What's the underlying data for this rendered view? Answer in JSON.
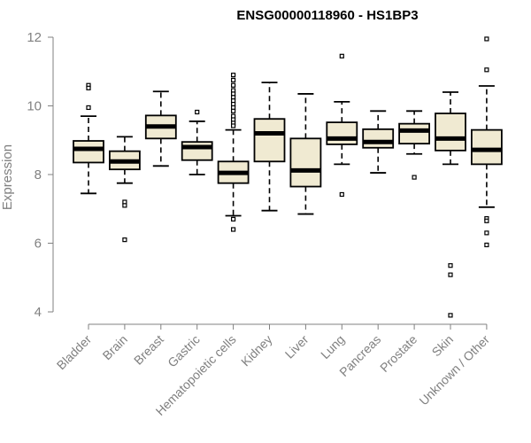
{
  "chart_data": {
    "type": "boxplot",
    "title": "ENSG00000118960 - HS1BP3",
    "xlabel": "",
    "ylabel": "Expression",
    "ylim": [
      3.7,
      12.2
    ],
    "yticks": [
      4,
      6,
      8,
      10,
      12
    ],
    "box_fill": "#f0ead2",
    "stroke_color": "#000000",
    "axis_color": "#808080",
    "categories": [
      "Bladder",
      "Brain",
      "Breast",
      "Gastric",
      "Hematopoietic cells",
      "Kidney",
      "Liver",
      "Lung",
      "Pancreas",
      "Prostate",
      "Skin",
      "Unknown / Other"
    ],
    "boxes": [
      {
        "name": "Bladder",
        "whislo": 7.45,
        "q1": 8.35,
        "med": 8.75,
        "q3": 8.98,
        "whishi": 9.7,
        "fliers": [
          10.6,
          10.52,
          9.95
        ]
      },
      {
        "name": "Brain",
        "whislo": 7.75,
        "q1": 8.15,
        "med": 8.38,
        "q3": 8.68,
        "whishi": 9.1,
        "fliers": [
          7.2,
          7.1,
          6.1
        ]
      },
      {
        "name": "Breast",
        "whislo": 8.25,
        "q1": 9.05,
        "med": 9.4,
        "q3": 9.72,
        "whishi": 10.42,
        "fliers": []
      },
      {
        "name": "Gastric",
        "whislo": 8.0,
        "q1": 8.42,
        "med": 8.8,
        "q3": 8.95,
        "whishi": 9.55,
        "fliers": [
          9.82
        ]
      },
      {
        "name": "Hematopoietic cells",
        "whislo": 6.8,
        "q1": 7.75,
        "med": 8.05,
        "q3": 8.38,
        "whishi": 9.3,
        "fliers": [
          10.9,
          10.75,
          10.6,
          10.45,
          10.35,
          10.25,
          10.15,
          10.05,
          9.95,
          9.85,
          9.7,
          9.6,
          9.5,
          9.42,
          6.7,
          6.4
        ]
      },
      {
        "name": "Kidney",
        "whislo": 6.95,
        "q1": 8.38,
        "med": 9.2,
        "q3": 9.62,
        "whishi": 10.68,
        "fliers": []
      },
      {
        "name": "Liver",
        "whislo": 6.85,
        "q1": 7.65,
        "med": 8.12,
        "q3": 9.05,
        "whishi": 10.35,
        "fliers": []
      },
      {
        "name": "Lung",
        "whislo": 8.3,
        "q1": 8.88,
        "med": 9.05,
        "q3": 9.52,
        "whishi": 10.12,
        "fliers": [
          11.45,
          7.42
        ]
      },
      {
        "name": "Pancreas",
        "whislo": 8.05,
        "q1": 8.78,
        "med": 8.95,
        "q3": 9.32,
        "whishi": 9.85,
        "fliers": []
      },
      {
        "name": "Prostate",
        "whislo": 8.6,
        "q1": 8.9,
        "med": 9.28,
        "q3": 9.48,
        "whishi": 9.85,
        "fliers": [
          7.92
        ]
      },
      {
        "name": "Skin",
        "whislo": 8.3,
        "q1": 8.7,
        "med": 9.05,
        "q3": 9.78,
        "whishi": 10.4,
        "fliers": [
          5.35,
          5.08,
          3.9
        ]
      },
      {
        "name": "Unknown / Other",
        "whislo": 7.05,
        "q1": 8.3,
        "med": 8.72,
        "q3": 9.3,
        "whishi": 10.58,
        "fliers": [
          11.95,
          11.05,
          6.72,
          6.65,
          6.3,
          5.95
        ]
      }
    ]
  }
}
